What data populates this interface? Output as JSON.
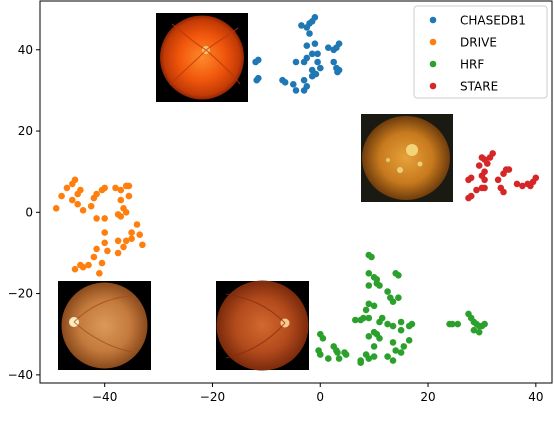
{
  "chart_data": {
    "type": "scatter",
    "title": "",
    "xlabel": "",
    "ylabel": "",
    "xlim": [
      -52,
      43
    ],
    "ylim": [
      -42,
      52
    ],
    "xticks": [
      -40,
      -20,
      0,
      20,
      40
    ],
    "yticks": [
      -40,
      -20,
      0,
      20,
      40
    ],
    "grid": false,
    "legend_position": "top-right",
    "series": [
      {
        "name": "CHASEDB1",
        "color": "#1f77b4",
        "points": [
          [
            -12,
            37
          ],
          [
            -11.5,
            37.5
          ],
          [
            -11.5,
            33
          ],
          [
            -11.8,
            32.5
          ],
          [
            -7,
            32.5
          ],
          [
            -6.5,
            32
          ],
          [
            -5,
            31.5
          ],
          [
            -4.5,
            30
          ],
          [
            -3,
            30
          ],
          [
            -2.5,
            31
          ],
          [
            -3,
            32.5
          ],
          [
            -1.5,
            33.5
          ],
          [
            -4.5,
            37
          ],
          [
            -3,
            37
          ],
          [
            -1.5,
            39
          ],
          [
            -2.5,
            38
          ],
          [
            -2.5,
            41
          ],
          [
            -1,
            41.5
          ],
          [
            -0.5,
            39
          ],
          [
            -1.5,
            35
          ],
          [
            -0.5,
            37
          ],
          [
            0,
            35.5
          ],
          [
            -0.8,
            34
          ],
          [
            -3.5,
            46
          ],
          [
            -2.5,
            45.5
          ],
          [
            -2,
            46.5
          ],
          [
            -1.5,
            47
          ],
          [
            -1,
            48
          ],
          [
            -2,
            44
          ],
          [
            1.5,
            40.5
          ],
          [
            2.5,
            40
          ],
          [
            3,
            40.5
          ],
          [
            3.5,
            41.5
          ],
          [
            2.5,
            37
          ],
          [
            3,
            35.5
          ],
          [
            3.5,
            35
          ],
          [
            3.2,
            34.5
          ]
        ]
      },
      {
        "name": "DRIVE",
        "color": "#ff7f0e",
        "points": [
          [
            -48,
            4
          ],
          [
            -47,
            6
          ],
          [
            -49,
            1
          ],
          [
            -46,
            7
          ],
          [
            -45.5,
            8
          ],
          [
            -46,
            3
          ],
          [
            -45,
            4.5
          ],
          [
            -44.5,
            5.5
          ],
          [
            -45,
            2
          ],
          [
            -44,
            0.5
          ],
          [
            -42,
            3.5
          ],
          [
            -41.5,
            4.5
          ],
          [
            -42.5,
            1.5
          ],
          [
            -40.5,
            5.5
          ],
          [
            -40,
            6
          ],
          [
            -38,
            6
          ],
          [
            -37,
            5.5
          ],
          [
            -36,
            6.5
          ],
          [
            -35.5,
            6.5
          ],
          [
            -35.5,
            4
          ],
          [
            -37,
            3
          ],
          [
            -36.5,
            1
          ],
          [
            -37.5,
            -0.5
          ],
          [
            -37,
            -1
          ],
          [
            -36,
            0
          ],
          [
            -40,
            -1.5
          ],
          [
            -41.5,
            -1.5
          ],
          [
            -34,
            -3
          ],
          [
            -35,
            -5
          ],
          [
            -33.5,
            -5.5
          ],
          [
            -33,
            -8
          ],
          [
            -35,
            -6.5
          ],
          [
            -36,
            -7
          ],
          [
            -37.5,
            -7
          ],
          [
            -36.5,
            -8.5
          ],
          [
            -37.5,
            -10
          ],
          [
            -40,
            -5
          ],
          [
            -40,
            -7.5
          ],
          [
            -39.5,
            -9.5
          ],
          [
            -41.5,
            -9
          ],
          [
            -42,
            -11
          ],
          [
            -40.5,
            -12.5
          ],
          [
            -41,
            -15
          ],
          [
            -43,
            -13
          ],
          [
            -44,
            -13.5
          ],
          [
            -44.5,
            -13
          ],
          [
            -45.5,
            -14
          ]
        ]
      },
      {
        "name": "HRF",
        "color": "#2ca02c",
        "points": [
          [
            9,
            -10.5
          ],
          [
            9.5,
            -11
          ],
          [
            9,
            -15
          ],
          [
            10,
            -16
          ],
          [
            10.5,
            -16.5
          ],
          [
            9,
            -18
          ],
          [
            11,
            -18
          ],
          [
            10.5,
            -17.5
          ],
          [
            13,
            -21
          ],
          [
            14,
            -15
          ],
          [
            14.5,
            -15.5
          ],
          [
            12.5,
            -19.5
          ],
          [
            14.5,
            -21
          ],
          [
            13.5,
            -22
          ],
          [
            9,
            -22.5
          ],
          [
            10,
            -23
          ],
          [
            8.5,
            -24
          ],
          [
            8,
            -26
          ],
          [
            6.5,
            -26.5
          ],
          [
            7.5,
            -26.5
          ],
          [
            9,
            -26
          ],
          [
            11.5,
            -26
          ],
          [
            11,
            -27
          ],
          [
            12.5,
            -27.5
          ],
          [
            13.5,
            -28
          ],
          [
            15,
            -27
          ],
          [
            16.5,
            -28
          ],
          [
            17,
            -27.5
          ],
          [
            15,
            -29
          ],
          [
            10,
            -29.5
          ],
          [
            10.5,
            -30
          ],
          [
            9,
            -30.5
          ],
          [
            10,
            -33
          ],
          [
            11,
            -31
          ],
          [
            13.5,
            -32
          ],
          [
            14,
            -34
          ],
          [
            15.5,
            -33
          ],
          [
            15,
            -34.5
          ],
          [
            16.5,
            -31.5
          ],
          [
            12.5,
            -35.5
          ],
          [
            13.5,
            -36.5
          ],
          [
            10,
            -35.5
          ],
          [
            9,
            -36
          ],
          [
            8.5,
            -35
          ],
          [
            7.5,
            -36.5
          ],
          [
            7.5,
            -37
          ],
          [
            0,
            -30
          ],
          [
            0.5,
            -31
          ],
          [
            -0.3,
            -34
          ],
          [
            0,
            -35
          ],
          [
            1.5,
            -36
          ],
          [
            3,
            -34
          ],
          [
            3.5,
            -36
          ],
          [
            4.5,
            -34.5
          ],
          [
            4.8,
            -35
          ],
          [
            2.5,
            -33
          ],
          [
            3.2,
            -34.5
          ],
          [
            24,
            -27.5
          ],
          [
            24.5,
            -27.5
          ],
          [
            25.5,
            -27.5
          ],
          [
            27.5,
            -25
          ],
          [
            28,
            -26
          ],
          [
            28.5,
            -27
          ],
          [
            29,
            -27.5
          ],
          [
            29.5,
            -28
          ],
          [
            28.5,
            -29
          ],
          [
            29.5,
            -29.5
          ],
          [
            30,
            -28
          ],
          [
            30.5,
            -27.5
          ]
        ]
      },
      {
        "name": "STARE",
        "color": "#d62728",
        "points": [
          [
            27.5,
            8
          ],
          [
            28,
            8.5
          ],
          [
            27.5,
            3.5
          ],
          [
            28,
            4
          ],
          [
            29,
            5.5
          ],
          [
            30,
            6
          ],
          [
            30.5,
            6
          ],
          [
            30,
            9
          ],
          [
            30.5,
            10
          ],
          [
            31,
            12
          ],
          [
            30,
            13.5
          ],
          [
            30.5,
            13
          ],
          [
            31.5,
            13.5
          ],
          [
            32,
            14.5
          ],
          [
            29.5,
            11.5
          ],
          [
            30.5,
            8
          ],
          [
            33,
            8
          ],
          [
            33.5,
            6
          ],
          [
            34,
            5
          ],
          [
            34,
            9.5
          ],
          [
            34.5,
            10.5
          ],
          [
            35,
            10.5
          ],
          [
            36.5,
            7
          ],
          [
            37.5,
            6.5
          ],
          [
            38.5,
            7
          ],
          [
            39.5,
            7.5
          ],
          [
            40,
            8.5
          ],
          [
            39,
            6.5
          ]
        ]
      }
    ]
  }
}
